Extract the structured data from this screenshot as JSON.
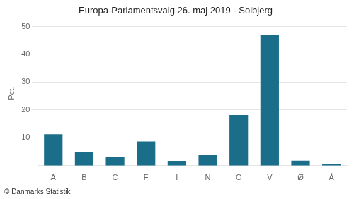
{
  "chart_data": {
    "type": "bar",
    "title": "Europa-Parlamentsvalg 26. maj 2019 - Solbjerg",
    "ylabel": "Pct.",
    "footer": "© Danmarks Statistik",
    "categories": [
      "A",
      "B",
      "C",
      "F",
      "I",
      "N",
      "O",
      "V",
      "Ø",
      "Å"
    ],
    "values": [
      11.3,
      5.0,
      3.2,
      8.7,
      1.7,
      4.0,
      18.2,
      46.8,
      1.8,
      0.7
    ],
    "color": "#1a6e8a",
    "ylim": [
      0,
      52
    ],
    "yticks": [
      10,
      20,
      30,
      40,
      50
    ],
    "grid": true
  }
}
